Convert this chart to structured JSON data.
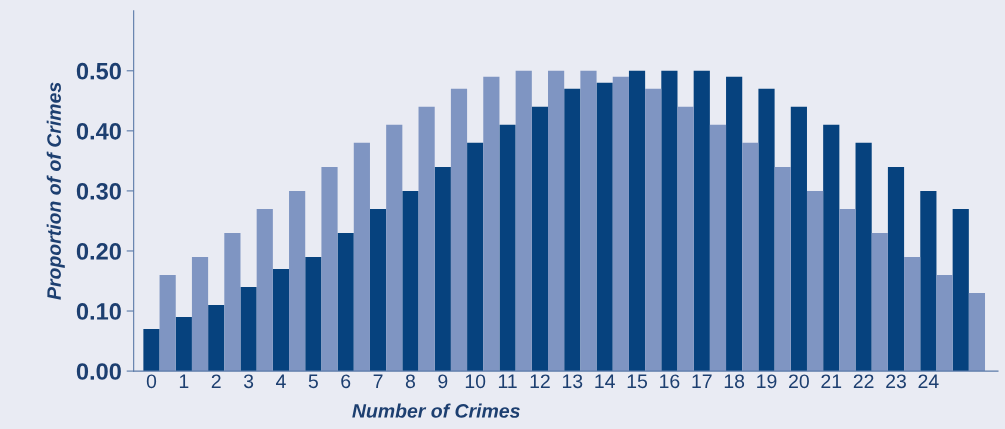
{
  "chart_data": {
    "type": "bar",
    "xlabel": "Number of Crimes",
    "ylabel": "Proportion of of Crimes",
    "categories": [
      "0",
      "1",
      "2",
      "3",
      "4",
      "5",
      "6",
      "7",
      "8",
      "9",
      "10",
      "11",
      "12",
      "13",
      "14",
      "15",
      "16",
      "17",
      "18",
      "19",
      "20",
      "21",
      "22",
      "23",
      "24",
      null
    ],
    "series": [
      {
        "color": "#06427e",
        "values": [
          0.07,
          0.09,
          0.11,
          0.14,
          0.17,
          0.19,
          0.23,
          0.27,
          0.3,
          0.34,
          0.38,
          0.41,
          0.44,
          0.47,
          0.48,
          0.5,
          0.5,
          0.5,
          0.49,
          0.47,
          0.44,
          0.41,
          0.38,
          0.34,
          0.3,
          0.27
        ]
      },
      {
        "color": "#7f95c2",
        "values": [
          0.16,
          0.19,
          0.23,
          0.27,
          0.3,
          0.34,
          0.38,
          0.41,
          0.44,
          0.47,
          0.49,
          0.5,
          0.5,
          0.5,
          0.49,
          0.47,
          0.44,
          0.41,
          0.38,
          0.34,
          0.3,
          0.27,
          0.23,
          0.19,
          0.16,
          0.13
        ]
      }
    ],
    "ylim": [
      0,
      0.6
    ],
    "yticks": [
      {
        "value": 0,
        "label": "0.00"
      },
      {
        "value": 0.1,
        "label": "0.10"
      },
      {
        "value": 0.2,
        "label": "0.20"
      },
      {
        "value": 0.3,
        "label": "0.30"
      },
      {
        "value": 0.4,
        "label": "0.40"
      },
      {
        "value": 0.5,
        "label": "0.50"
      }
    ],
    "grid": false
  }
}
